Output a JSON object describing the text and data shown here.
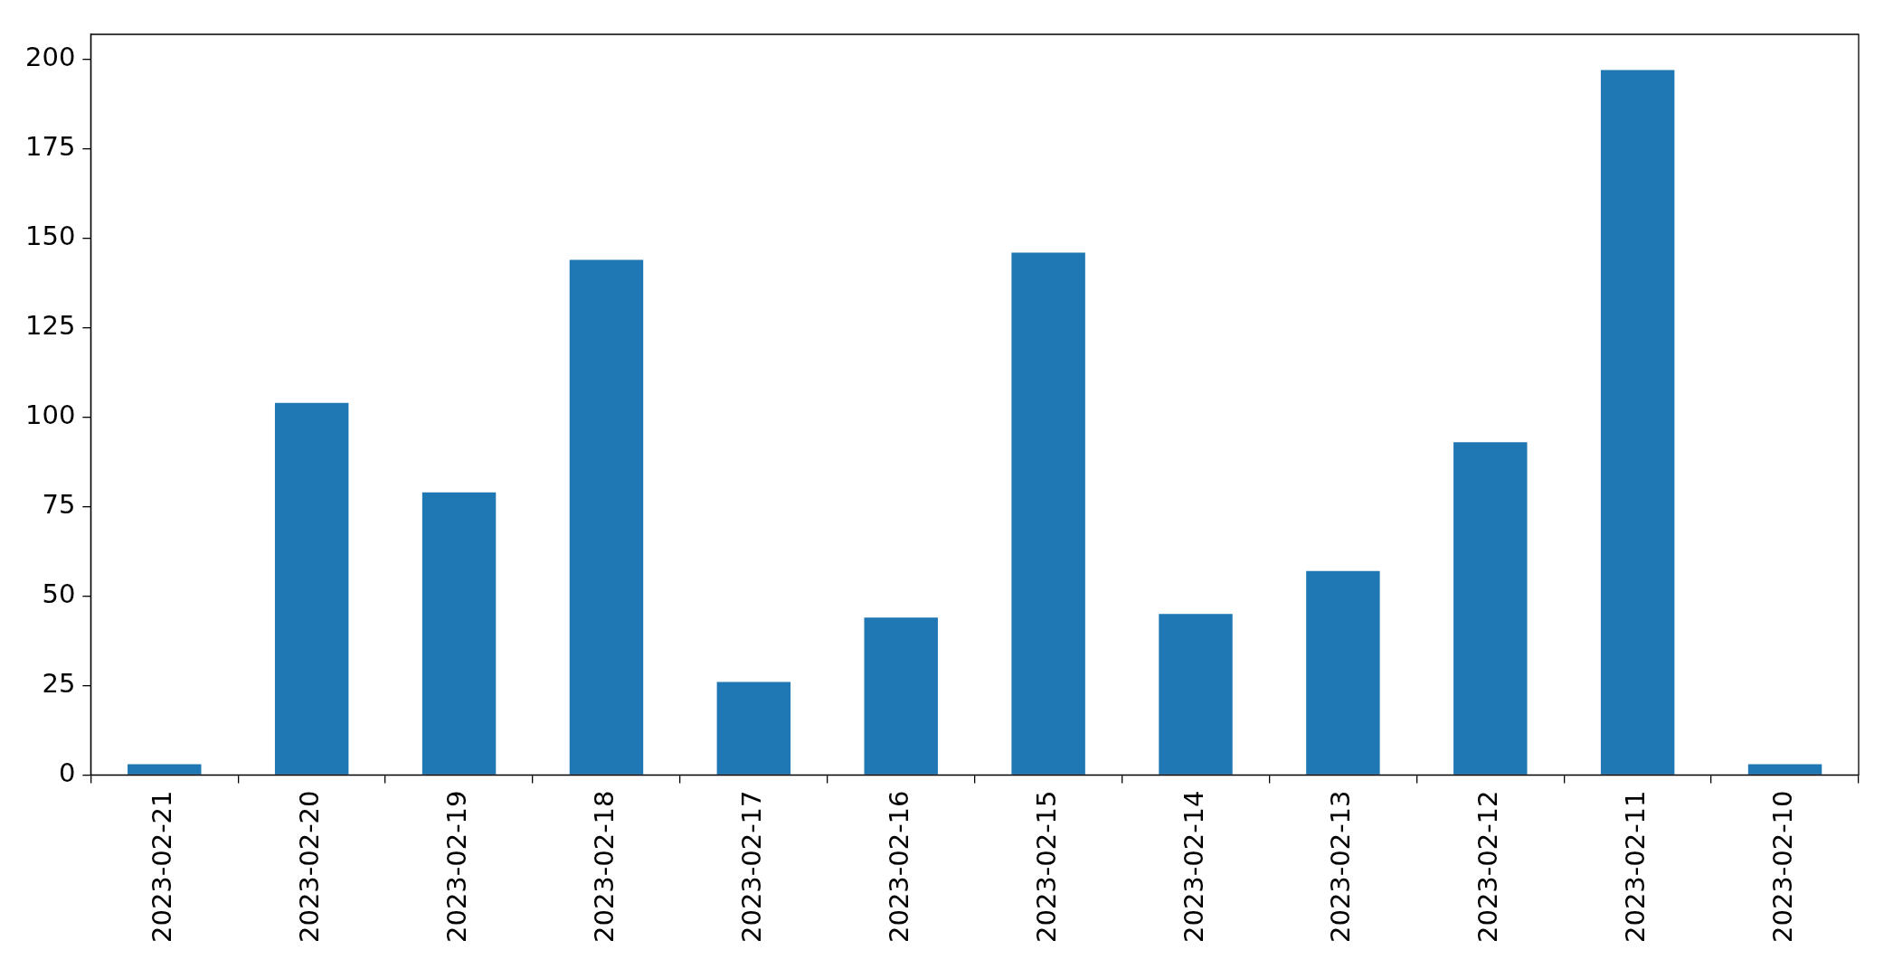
{
  "chart_data": {
    "type": "bar",
    "categories": [
      "2023-02-21",
      "2023-02-20",
      "2023-02-19",
      "2023-02-18",
      "2023-02-17",
      "2023-02-16",
      "2023-02-15",
      "2023-02-14",
      "2023-02-13",
      "2023-02-12",
      "2023-02-11",
      "2023-02-10"
    ],
    "values": [
      3,
      104,
      79,
      144,
      26,
      44,
      146,
      45,
      57,
      93,
      197,
      3
    ],
    "color": "#1f77b4",
    "ylim": [
      0,
      207
    ],
    "yticks": [
      0,
      25,
      50,
      75,
      100,
      125,
      150,
      175,
      200
    ],
    "grid": false,
    "legend": false
  }
}
